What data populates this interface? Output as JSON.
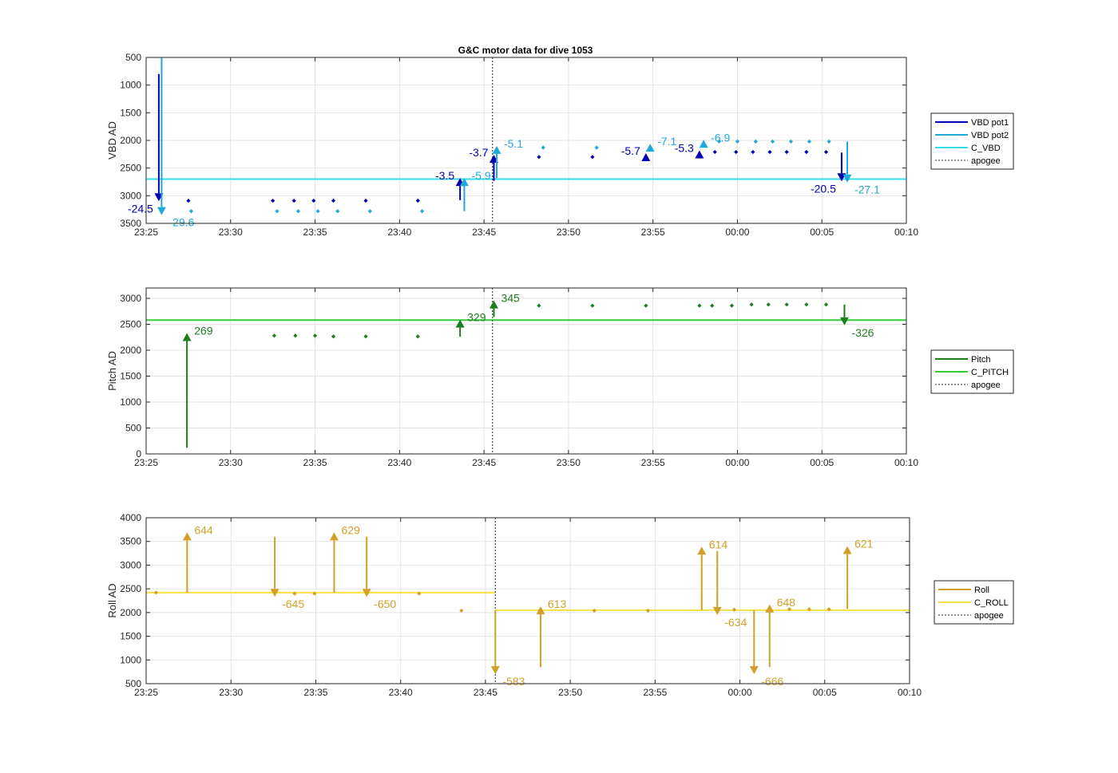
{
  "title": "G&C motor data for dive 1053",
  "chart_data": [
    {
      "type": "line",
      "ylabel": "VBD AD",
      "ylim": [
        500,
        3500
      ],
      "y_reversed": true,
      "yticks": [
        500,
        1000,
        1500,
        2000,
        2500,
        3000,
        3500
      ],
      "xlim": [
        "23:25",
        "00:10"
      ],
      "xticks": [
        "23:25",
        "23:30",
        "23:35",
        "23:40",
        "23:45",
        "23:50",
        "23:55",
        "00:00",
        "00:05",
        "00:10"
      ],
      "apogee": "23:45:30",
      "legend": [
        "VBD pot1",
        "VBD pot2",
        "C_VBD",
        "apogee"
      ],
      "hlines": [
        {
          "series": "C_VBD",
          "y": 2700
        }
      ],
      "points": [
        {
          "series": "VBD pot1",
          "pts": [
            [
              "23:27:30",
              3090
            ],
            [
              "23:32:30",
              3090
            ],
            [
              "23:33:45",
              3090
            ],
            [
              "23:34:55",
              3090
            ],
            [
              "23:36:05",
              3090
            ],
            [
              "23:38:00",
              3090
            ],
            [
              "23:41:05",
              3090
            ],
            [
              "23:48:15",
              2300
            ],
            [
              "23:51:25",
              2300
            ],
            [
              "23:58:40",
              2210
            ],
            [
              "23:59:55",
              2210
            ],
            [
              "00:00:55",
              2210
            ],
            [
              "00:01:55",
              2210
            ],
            [
              "00:02:55",
              2210
            ],
            [
              "00:04:05",
              2210
            ],
            [
              "00:05:15",
              2210
            ]
          ]
        },
        {
          "series": "VBD pot2",
          "pts": [
            [
              "23:27:40",
              3280
            ],
            [
              "23:32:45",
              3280
            ],
            [
              "23:34:00",
              3280
            ],
            [
              "23:35:10",
              3280
            ],
            [
              "23:36:20",
              3280
            ],
            [
              "23:38:15",
              3280
            ],
            [
              "23:41:20",
              3280
            ],
            [
              "23:48:30",
              2130
            ],
            [
              "23:51:40",
              2130
            ],
            [
              "23:58:55",
              2020
            ],
            [
              "00:00:00",
              2020
            ],
            [
              "00:01:05",
              2020
            ],
            [
              "00:02:05",
              2020
            ],
            [
              "00:03:10",
              2020
            ],
            [
              "00:04:15",
              2020
            ],
            [
              "00:05:25",
              2020
            ]
          ]
        }
      ],
      "arrows": [
        {
          "series": "VBD pot1",
          "x": "23:25:45",
          "y0": 800,
          "y1": 3100,
          "label": "-24.5",
          "side": "left"
        },
        {
          "series": "VBD pot2",
          "x": "23:25:55",
          "y0": 500,
          "y1": 3350,
          "label": "-29.6",
          "side": "right"
        },
        {
          "series": "VBD pot1",
          "x": "23:43:35",
          "y0": 3080,
          "y1": 2680,
          "label": "-3.5",
          "side": "left"
        },
        {
          "series": "VBD pot2",
          "x": "23:43:50",
          "y0": 3280,
          "y1": 2680,
          "label": "-5.9",
          "side": "right"
        },
        {
          "series": "VBD pot1",
          "x": "23:45:35",
          "y0": 2730,
          "y1": 2260,
          "label": "-3.7",
          "side": "left"
        },
        {
          "series": "VBD pot2",
          "x": "23:45:45",
          "y0": 2680,
          "y1": 2100,
          "label": "-5.1",
          "side": "right"
        },
        {
          "series": "VBD pot1",
          "x": "23:54:35",
          "y0": 2270,
          "y1": 2230,
          "label": "-5.7",
          "side": "left"
        },
        {
          "series": "VBD pot2",
          "x": "23:54:50",
          "y0": 2120,
          "y1": 2060,
          "label": "-7.1",
          "side": "right"
        },
        {
          "series": "VBD pot1",
          "x": "23:57:45",
          "y0": 2220,
          "y1": 2180,
          "label": "-5.3",
          "side": "left"
        },
        {
          "series": "VBD pot2",
          "x": "23:58:00",
          "y0": 2030,
          "y1": 1990,
          "label": "-6.9",
          "side": "right"
        },
        {
          "series": "VBD pot1",
          "x": "00:06:10",
          "y0": 2220,
          "y1": 2740,
          "label": "-20.5",
          "side": "left"
        },
        {
          "series": "VBD pot2",
          "x": "00:06:30",
          "y0": 2020,
          "y1": 2760,
          "label": "-27.1",
          "side": "right"
        }
      ]
    },
    {
      "type": "line",
      "ylabel": "Pitch AD",
      "ylim": [
        0,
        3200
      ],
      "y_reversed": false,
      "yticks": [
        0,
        500,
        1000,
        1500,
        2000,
        2500,
        3000
      ],
      "xlim": [
        "23:25",
        "00:10"
      ],
      "xticks": [
        "23:25",
        "23:30",
        "23:35",
        "23:40",
        "23:45",
        "23:50",
        "23:55",
        "00:00",
        "00:05",
        "00:10"
      ],
      "apogee": "23:45:30",
      "legend": [
        "Pitch",
        "C_PITCH",
        "apogee"
      ],
      "hlines": [
        {
          "series": "C_PITCH",
          "y": 2580
        }
      ],
      "points": [
        {
          "series": "Pitch",
          "pts": [
            [
              "23:32:35",
              2280
            ],
            [
              "23:33:50",
              2280
            ],
            [
              "23:35:00",
              2280
            ],
            [
              "23:36:05",
              2265
            ],
            [
              "23:38:00",
              2265
            ],
            [
              "23:41:05",
              2265
            ],
            [
              "23:48:15",
              2860
            ],
            [
              "23:51:25",
              2860
            ],
            [
              "23:54:35",
              2860
            ],
            [
              "23:57:45",
              2860
            ],
            [
              "23:58:30",
              2860
            ],
            [
              "23:59:40",
              2860
            ],
            [
              "00:00:50",
              2880
            ],
            [
              "00:01:50",
              2880
            ],
            [
              "00:02:55",
              2880
            ],
            [
              "00:04:05",
              2880
            ],
            [
              "00:05:15",
              2880
            ]
          ]
        }
      ],
      "arrows": [
        {
          "series": "Pitch",
          "x": "23:27:25",
          "y0": 120,
          "y1": 2330,
          "label": "269",
          "side": "right"
        },
        {
          "series": "Pitch",
          "x": "23:43:35",
          "y0": 2260,
          "y1": 2590,
          "label": "329",
          "side": "right"
        },
        {
          "series": "Pitch",
          "x": "23:45:35",
          "y0": 2640,
          "y1": 2960,
          "label": "345",
          "side": "right"
        },
        {
          "series": "Pitch",
          "x": "00:06:20",
          "y0": 2880,
          "y1": 2480,
          "label": "-326",
          "side": "right"
        }
      ]
    },
    {
      "type": "line",
      "ylabel": "Roll AD",
      "ylim": [
        500,
        4000
      ],
      "y_reversed": false,
      "yticks": [
        500,
        1000,
        1500,
        2000,
        2500,
        3000,
        3500,
        4000
      ],
      "xlim": [
        "23:25",
        "00:10"
      ],
      "xticks": [
        "23:25",
        "23:30",
        "23:35",
        "23:40",
        "23:45",
        "23:50",
        "23:55",
        "00:00",
        "00:05",
        "00:10"
      ],
      "apogee": "23:45:35",
      "legend": [
        "Roll",
        "C_ROLL",
        "apogee"
      ],
      "hlines": [
        {
          "series": "C_ROLL",
          "y": 2420,
          "x0": "23:25",
          "x1": "23:45:35"
        },
        {
          "series": "C_ROLL",
          "y": 2050,
          "x0": "23:45:35",
          "x1": "00:10"
        }
      ],
      "points": [
        {
          "series": "Roll",
          "pts": [
            [
              "23:25:35",
              2420
            ],
            [
              "23:33:45",
              2400
            ],
            [
              "23:34:55",
              2400
            ],
            [
              "23:41:05",
              2400
            ],
            [
              "23:43:35",
              2040
            ],
            [
              "23:51:25",
              2040
            ],
            [
              "23:54:35",
              2040
            ],
            [
              "23:59:40",
              2060
            ],
            [
              "00:02:55",
              2070
            ],
            [
              "00:04:05",
              2070
            ],
            [
              "00:05:15",
              2070
            ]
          ]
        }
      ],
      "arrows": [
        {
          "series": "Roll",
          "x": "23:27:25",
          "y0": 2420,
          "y1": 3690,
          "label": "644",
          "side": "right"
        },
        {
          "series": "Roll",
          "x": "23:32:35",
          "y0": 3600,
          "y1": 2330,
          "label": "-645",
          "side": "right"
        },
        {
          "series": "Roll",
          "x": "23:36:05",
          "y0": 2420,
          "y1": 3690,
          "label": "629",
          "side": "right"
        },
        {
          "series": "Roll",
          "x": "23:38:00",
          "y0": 3600,
          "y1": 2330,
          "label": "-650",
          "side": "right"
        },
        {
          "series": "Roll",
          "x": "23:45:35",
          "y0": 2050,
          "y1": 700,
          "label": "-583",
          "side": "right"
        },
        {
          "series": "Roll",
          "x": "23:48:15",
          "y0": 850,
          "y1": 2130,
          "label": "613",
          "side": "right"
        },
        {
          "series": "Roll",
          "x": "23:57:45",
          "y0": 2050,
          "y1": 3390,
          "label": "614",
          "side": "right"
        },
        {
          "series": "Roll",
          "x": "23:58:40",
          "y0": 3300,
          "y1": 1950,
          "label": "-634",
          "side": "right"
        },
        {
          "series": "Roll",
          "x": "00:00:50",
          "y0": 2050,
          "y1": 700,
          "label": "-666",
          "side": "right"
        },
        {
          "series": "Roll",
          "x": "00:01:45",
          "y0": 850,
          "y1": 2170,
          "label": "648",
          "side": "right"
        },
        {
          "series": "Roll",
          "x": "00:06:20",
          "y0": 2080,
          "y1": 3400,
          "label": "621",
          "side": "right"
        }
      ]
    }
  ],
  "colors": {
    "VBD pot1": "#0000b3",
    "VBD pot2": "#1fa9d8",
    "C_VBD": "#33dde5",
    "Pitch": "#1f7d1f",
    "C_PITCH": "#33cc33",
    "Roll": "#d2a028",
    "C_ROLL": "#f5e242",
    "apogee": "#555555",
    "axis": "#262626",
    "grid": "#e3e3e3"
  }
}
